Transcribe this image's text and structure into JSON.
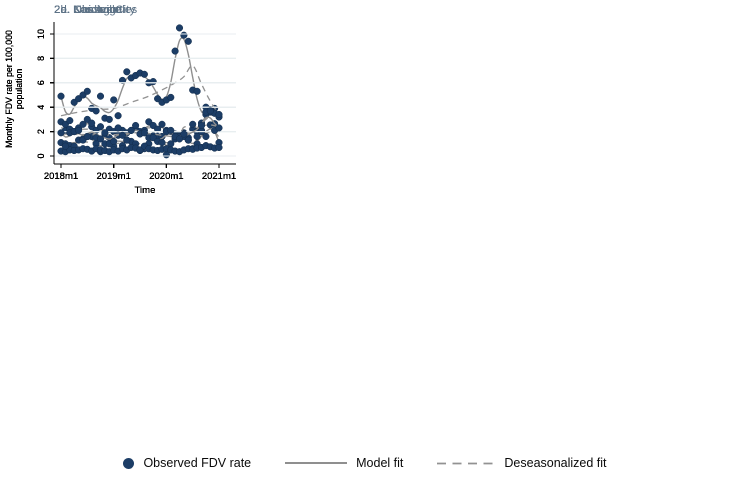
{
  "figure": {
    "colors": {
      "navy": "#1c3d66",
      "dotedge": "#122c4a",
      "fitline": "#8f8f8f",
      "dash": "#929292",
      "grid": "#e8eef0",
      "axis": "#000000",
      "title": "#5d7286"
    }
  },
  "chart_data": {
    "type": "scatter",
    "description": "Monthly observed FDV rates with model fit (solid) and deseasonalized fit (dashed), five cities, 2018m1-2021m1",
    "x": {
      "unit": "month",
      "n_points": 37,
      "start_label": "2018m1",
      "end_label": "2021m1",
      "tick_labels": [
        "2018m1",
        "2019m1",
        "2020m1",
        "2021m1"
      ],
      "tick_month_index": [
        0,
        12,
        24,
        36
      ],
      "axis_label": "Time"
    },
    "y": {
      "axis_label_lines": [
        "Monthly FDV rate per 100,000",
        "population"
      ],
      "axis_label": "Monthly FDV rate per 100,000 population",
      "ticks": [
        0,
        2,
        4,
        6,
        8,
        10
      ],
      "range": [
        0,
        11
      ],
      "grid": true
    },
    "legend": {
      "position": "bottom-center",
      "entries": [
        {
          "marker": "dot",
          "label": "Observed FDV rate"
        },
        {
          "marker": "solid-line",
          "label": "Model fit"
        },
        {
          "marker": "dashed-line",
          "label": "Deseasonalized fit"
        }
      ]
    },
    "panels": [
      {
        "id": "2a",
        "title": "2a. Chicago",
        "observed": [
          2.8,
          2.1,
          2.2,
          2.0,
          2.3,
          2.6,
          3.0,
          2.4,
          2.1,
          2.4,
          1.8,
          2.2,
          2.0,
          1.9,
          2.1,
          1.9,
          2.1,
          2.2,
          2.0,
          2.1,
          2.8,
          2.5,
          2.2,
          2.6,
          2.1,
          2.0,
          1.8,
          1.7,
          1.9,
          1.5,
          2.2,
          2.0,
          2.7,
          3.4,
          3.6,
          3.9,
          3.2
        ],
        "deseasonalized_fit_points": [
          [
            0,
            2.3
          ],
          [
            4,
            2.2
          ],
          [
            8,
            2.2
          ],
          [
            12,
            2.05
          ],
          [
            16,
            2.0
          ],
          [
            20,
            2.3
          ],
          [
            24,
            2.1
          ],
          [
            27,
            1.85
          ],
          [
            29,
            1.95
          ],
          [
            31,
            2.3
          ],
          [
            33,
            3.0
          ],
          [
            36,
            3.7
          ]
        ]
      },
      {
        "id": "2b",
        "title": "2b. Cincinnati",
        "observed": [
          1.1,
          1.0,
          0.85,
          0.8,
          1.3,
          1.4,
          1.6,
          1.6,
          1.0,
          0.35,
          1.0,
          1.5,
          0.8,
          1.7,
          0.85,
          1.3,
          1.2,
          1.0,
          0.45,
          0.6,
          1.0,
          1.65,
          1.6,
          1.6,
          0.1,
          1.0,
          1.4,
          1.6,
          1.6,
          1.3,
          0.6,
          1.0,
          2.1,
          1.6,
          2.55,
          2.65,
          1.1
        ],
        "deseasonalized_fit_points": [
          [
            0,
            1.0
          ],
          [
            5,
            1.15
          ],
          [
            9,
            1.05
          ],
          [
            12,
            1.0
          ],
          [
            16,
            1.15
          ],
          [
            19,
            0.95
          ],
          [
            22,
            1.3
          ],
          [
            24,
            1.1
          ],
          [
            28,
            1.35
          ],
          [
            31,
            1.3
          ],
          [
            33,
            1.85
          ],
          [
            35,
            1.9
          ],
          [
            36,
            1.55
          ]
        ]
      },
      {
        "id": "2c",
        "title": "2c. Kansas City",
        "observed": [
          4.9,
          2.6,
          2.9,
          4.4,
          4.7,
          5.0,
          5.3,
          3.9,
          3.7,
          4.9,
          3.1,
          3.0,
          4.6,
          3.3,
          6.2,
          6.9,
          6.4,
          6.6,
          6.8,
          6.7,
          6.0,
          6.1,
          4.7,
          4.4,
          4.6,
          4.8,
          8.6,
          10.5,
          9.9,
          9.4,
          5.4,
          5.3,
          2.0,
          4.0,
          3.8,
          3.5,
          3.4
        ],
        "deseasonalized_fit_points": [
          [
            0,
            3.3
          ],
          [
            4,
            3.6
          ],
          [
            8,
            3.8
          ],
          [
            12,
            3.9
          ],
          [
            16,
            4.4
          ],
          [
            20,
            4.9
          ],
          [
            24,
            5.6
          ],
          [
            26,
            6.0
          ],
          [
            28,
            6.5
          ],
          [
            30,
            7.4
          ],
          [
            32,
            5.9
          ],
          [
            34,
            4.5
          ],
          [
            36,
            3.4
          ]
        ]
      },
      {
        "id": "2d",
        "title": "2d. Los Angeles",
        "observed": [
          0.4,
          0.35,
          0.5,
          0.45,
          0.5,
          0.6,
          0.55,
          0.4,
          0.6,
          0.5,
          0.45,
          0.35,
          0.5,
          0.4,
          0.6,
          0.5,
          0.7,
          0.65,
          0.5,
          0.8,
          0.6,
          0.5,
          0.45,
          0.55,
          0.6,
          0.5,
          0.4,
          0.35,
          0.5,
          0.6,
          0.55,
          0.65,
          0.7,
          0.85,
          0.75,
          0.65,
          0.7
        ],
        "deseasonalized_fit_points": [
          [
            0,
            0.42
          ],
          [
            8,
            0.5
          ],
          [
            16,
            0.55
          ],
          [
            24,
            0.5
          ],
          [
            30,
            0.6
          ],
          [
            36,
            0.72
          ]
        ]
      },
      {
        "id": "2e",
        "title": "2e. Nashville",
        "observed": [
          1.9,
          0.8,
          1.9,
          2.0,
          2.1,
          1.3,
          1.6,
          2.7,
          1.5,
          1.4,
          1.9,
          1.0,
          1.2,
          2.3,
          1.7,
          1.3,
          2.1,
          2.5,
          1.8,
          1.9,
          1.5,
          1.5,
          1.2,
          1.1,
          2.0,
          2.1,
          1.6,
          1.4,
          1.8,
          1.3,
          2.6,
          1.6,
          2.5,
          3.6,
          3.7,
          2.1,
          2.3
        ],
        "deseasonalized_fit_points": [
          [
            0,
            1.8
          ],
          [
            6,
            1.75
          ],
          [
            12,
            1.75
          ],
          [
            18,
            1.9
          ],
          [
            24,
            1.65
          ],
          [
            27,
            1.55
          ],
          [
            28,
            2.35
          ],
          [
            31,
            2.4
          ],
          [
            34,
            2.55
          ],
          [
            36,
            2.35
          ]
        ]
      }
    ]
  }
}
